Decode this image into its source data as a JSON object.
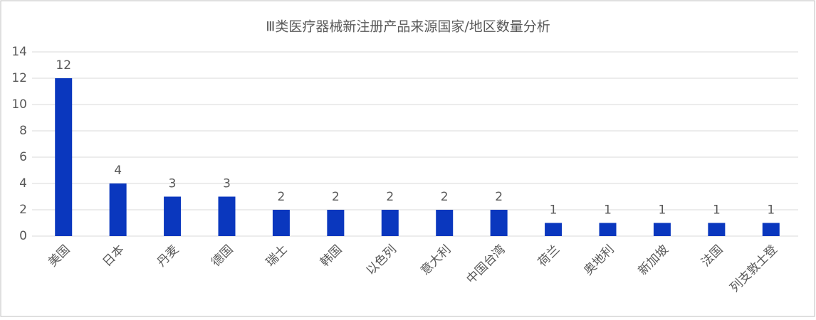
{
  "chart_data": {
    "type": "bar",
    "title": "Ⅲ类医疗器械新注册产品来源国家/地区数量分析",
    "categories": [
      "美国",
      "日本",
      "丹麦",
      "德国",
      "瑞士",
      "韩国",
      "以色列",
      "意大利",
      "中国台湾",
      "荷兰",
      "奥地利",
      "新加坡",
      "法国",
      "列支敦士登"
    ],
    "values": [
      12,
      4,
      3,
      3,
      2,
      2,
      2,
      2,
      2,
      1,
      1,
      1,
      1,
      1
    ],
    "color": "#0a37be",
    "ylim": [
      0,
      14
    ],
    "yticks": [
      0,
      2,
      4,
      6,
      8,
      10,
      12,
      14
    ],
    "grid": true
  }
}
